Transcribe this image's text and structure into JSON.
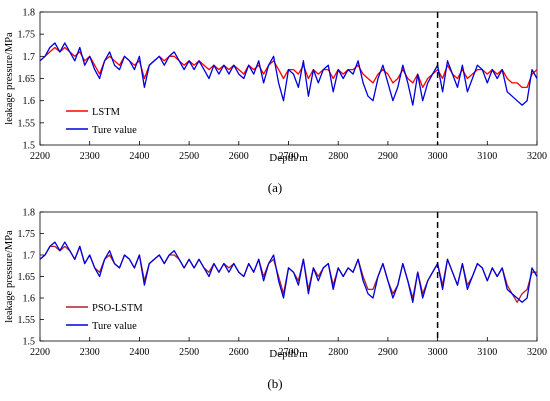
{
  "chart_data": [
    {
      "type": "line",
      "panel_label": "(a)",
      "xlabel": "Depth/m",
      "ylabel": "leakage pressure/MPa",
      "xlim": [
        2200,
        3200
      ],
      "ylim": [
        1.5,
        1.8
      ],
      "x_ticks": [
        "2200",
        "2300",
        "2400",
        "2500",
        "2600",
        "2700",
        "2800",
        "2900",
        "3000",
        "3100",
        "3200"
      ],
      "y_ticks": [
        "1.5",
        "1.55",
        "1.6",
        "1.65",
        "1.7",
        "1.75",
        "1.8"
      ],
      "vertical_marker_x": 3000,
      "legend_placement": "bottom-left",
      "grid": false,
      "x": [
        2200,
        2210,
        2220,
        2230,
        2240,
        2250,
        2260,
        2270,
        2280,
        2290,
        2300,
        2310,
        2320,
        2330,
        2340,
        2350,
        2360,
        2370,
        2380,
        2390,
        2400,
        2410,
        2420,
        2430,
        2440,
        2450,
        2460,
        2470,
        2480,
        2490,
        2500,
        2510,
        2520,
        2530,
        2540,
        2550,
        2560,
        2570,
        2580,
        2590,
        2600,
        2610,
        2620,
        2630,
        2640,
        2650,
        2660,
        2670,
        2680,
        2690,
        2700,
        2710,
        2720,
        2730,
        2740,
        2750,
        2760,
        2770,
        2780,
        2790,
        2800,
        2810,
        2820,
        2830,
        2840,
        2850,
        2860,
        2870,
        2880,
        2890,
        2900,
        2910,
        2920,
        2930,
        2940,
        2950,
        2960,
        2970,
        2980,
        2990,
        3000,
        3010,
        3020,
        3030,
        3040,
        3050,
        3060,
        3070,
        3080,
        3090,
        3100,
        3110,
        3120,
        3130,
        3140,
        3150,
        3160,
        3170,
        3180,
        3190,
        3200
      ],
      "series": [
        {
          "name": "LSTM",
          "color": "#ff0000",
          "values": [
            1.69,
            1.7,
            1.71,
            1.72,
            1.71,
            1.72,
            1.71,
            1.7,
            1.71,
            1.69,
            1.7,
            1.68,
            1.66,
            1.69,
            1.7,
            1.69,
            1.68,
            1.7,
            1.69,
            1.68,
            1.69,
            1.65,
            1.68,
            1.69,
            1.7,
            1.69,
            1.7,
            1.7,
            1.69,
            1.68,
            1.69,
            1.68,
            1.69,
            1.68,
            1.67,
            1.68,
            1.67,
            1.68,
            1.67,
            1.68,
            1.67,
            1.66,
            1.68,
            1.67,
            1.68,
            1.66,
            1.68,
            1.69,
            1.67,
            1.65,
            1.67,
            1.67,
            1.66,
            1.68,
            1.65,
            1.67,
            1.66,
            1.67,
            1.67,
            1.65,
            1.67,
            1.66,
            1.67,
            1.67,
            1.68,
            1.66,
            1.65,
            1.64,
            1.66,
            1.67,
            1.66,
            1.64,
            1.65,
            1.67,
            1.65,
            1.64,
            1.66,
            1.63,
            1.65,
            1.66,
            1.67,
            1.65,
            1.68,
            1.66,
            1.65,
            1.67,
            1.65,
            1.66,
            1.67,
            1.67,
            1.66,
            1.67,
            1.66,
            1.67,
            1.65,
            1.64,
            1.64,
            1.63,
            1.63,
            1.66,
            1.67
          ]
        },
        {
          "name": "Ture value",
          "color": "#0000dd",
          "values": [
            1.69,
            1.7,
            1.72,
            1.73,
            1.71,
            1.73,
            1.71,
            1.69,
            1.72,
            1.68,
            1.7,
            1.67,
            1.65,
            1.69,
            1.71,
            1.68,
            1.67,
            1.7,
            1.69,
            1.67,
            1.7,
            1.63,
            1.68,
            1.69,
            1.7,
            1.68,
            1.7,
            1.71,
            1.69,
            1.67,
            1.69,
            1.67,
            1.69,
            1.67,
            1.65,
            1.68,
            1.66,
            1.68,
            1.66,
            1.68,
            1.66,
            1.65,
            1.68,
            1.66,
            1.69,
            1.64,
            1.68,
            1.7,
            1.64,
            1.6,
            1.67,
            1.66,
            1.63,
            1.69,
            1.61,
            1.67,
            1.64,
            1.67,
            1.68,
            1.62,
            1.67,
            1.65,
            1.67,
            1.66,
            1.69,
            1.64,
            1.61,
            1.6,
            1.65,
            1.68,
            1.64,
            1.6,
            1.63,
            1.68,
            1.64,
            1.59,
            1.66,
            1.6,
            1.64,
            1.66,
            1.68,
            1.62,
            1.69,
            1.66,
            1.63,
            1.68,
            1.62,
            1.65,
            1.68,
            1.67,
            1.64,
            1.67,
            1.65,
            1.67,
            1.62,
            1.61,
            1.6,
            1.59,
            1.6,
            1.67,
            1.65
          ]
        }
      ]
    },
    {
      "type": "line",
      "panel_label": "(b)",
      "xlabel": "Depth/m",
      "ylabel": "leakage pressure/MPa",
      "xlim": [
        2200,
        3200
      ],
      "ylim": [
        1.5,
        1.8
      ],
      "x_ticks": [
        "2200",
        "2300",
        "2400",
        "2500",
        "2600",
        "2700",
        "2800",
        "2900",
        "3000",
        "3100",
        "3200"
      ],
      "y_ticks": [
        "1.5",
        "1.55",
        "1.6",
        "1.65",
        "1.7",
        "1.75",
        "1.8"
      ],
      "vertical_marker_x": 3000,
      "legend_placement": "bottom-left",
      "grid": false,
      "x": [
        2200,
        2210,
        2220,
        2230,
        2240,
        2250,
        2260,
        2270,
        2280,
        2290,
        2300,
        2310,
        2320,
        2330,
        2340,
        2350,
        2360,
        2370,
        2380,
        2390,
        2400,
        2410,
        2420,
        2430,
        2440,
        2450,
        2460,
        2470,
        2480,
        2490,
        2500,
        2510,
        2520,
        2530,
        2540,
        2550,
        2560,
        2570,
        2580,
        2590,
        2600,
        2610,
        2620,
        2630,
        2640,
        2650,
        2660,
        2670,
        2680,
        2690,
        2700,
        2710,
        2720,
        2730,
        2740,
        2750,
        2760,
        2770,
        2780,
        2790,
        2800,
        2810,
        2820,
        2830,
        2840,
        2850,
        2860,
        2870,
        2880,
        2890,
        2900,
        2910,
        2920,
        2930,
        2940,
        2950,
        2960,
        2970,
        2980,
        2990,
        3000,
        3010,
        3020,
        3030,
        3040,
        3050,
        3060,
        3070,
        3080,
        3090,
        3100,
        3110,
        3120,
        3130,
        3140,
        3150,
        3160,
        3170,
        3180,
        3190,
        3200
      ],
      "series": [
        {
          "name": "PSO-LSTM",
          "color": "#b22222",
          "values": [
            1.69,
            1.7,
            1.72,
            1.72,
            1.71,
            1.72,
            1.71,
            1.69,
            1.72,
            1.68,
            1.7,
            1.67,
            1.66,
            1.69,
            1.7,
            1.68,
            1.67,
            1.7,
            1.69,
            1.67,
            1.7,
            1.64,
            1.68,
            1.69,
            1.7,
            1.68,
            1.7,
            1.7,
            1.69,
            1.67,
            1.69,
            1.67,
            1.69,
            1.67,
            1.66,
            1.68,
            1.66,
            1.68,
            1.67,
            1.68,
            1.66,
            1.65,
            1.68,
            1.66,
            1.69,
            1.65,
            1.68,
            1.69,
            1.65,
            1.61,
            1.67,
            1.66,
            1.64,
            1.69,
            1.62,
            1.67,
            1.65,
            1.67,
            1.68,
            1.63,
            1.67,
            1.65,
            1.67,
            1.66,
            1.69,
            1.65,
            1.62,
            1.62,
            1.65,
            1.68,
            1.64,
            1.61,
            1.63,
            1.68,
            1.64,
            1.6,
            1.66,
            1.61,
            1.64,
            1.66,
            1.68,
            1.63,
            1.69,
            1.66,
            1.63,
            1.68,
            1.63,
            1.65,
            1.68,
            1.67,
            1.64,
            1.67,
            1.65,
            1.67,
            1.63,
            1.61,
            1.59,
            1.61,
            1.62,
            1.66,
            1.66
          ]
        },
        {
          "name": "Ture value",
          "color": "#0000dd",
          "values": [
            1.69,
            1.7,
            1.72,
            1.73,
            1.71,
            1.73,
            1.71,
            1.69,
            1.72,
            1.68,
            1.7,
            1.67,
            1.65,
            1.69,
            1.71,
            1.68,
            1.67,
            1.7,
            1.69,
            1.67,
            1.7,
            1.63,
            1.68,
            1.69,
            1.7,
            1.68,
            1.7,
            1.71,
            1.69,
            1.67,
            1.69,
            1.67,
            1.69,
            1.67,
            1.65,
            1.68,
            1.66,
            1.68,
            1.66,
            1.68,
            1.66,
            1.65,
            1.68,
            1.66,
            1.69,
            1.64,
            1.68,
            1.7,
            1.64,
            1.6,
            1.67,
            1.66,
            1.63,
            1.69,
            1.61,
            1.67,
            1.64,
            1.67,
            1.68,
            1.62,
            1.67,
            1.65,
            1.67,
            1.66,
            1.69,
            1.64,
            1.61,
            1.6,
            1.65,
            1.68,
            1.64,
            1.6,
            1.63,
            1.68,
            1.64,
            1.59,
            1.66,
            1.6,
            1.64,
            1.66,
            1.68,
            1.62,
            1.69,
            1.66,
            1.63,
            1.68,
            1.62,
            1.65,
            1.68,
            1.67,
            1.64,
            1.67,
            1.65,
            1.67,
            1.62,
            1.61,
            1.6,
            1.59,
            1.6,
            1.67,
            1.65
          ]
        }
      ]
    }
  ]
}
